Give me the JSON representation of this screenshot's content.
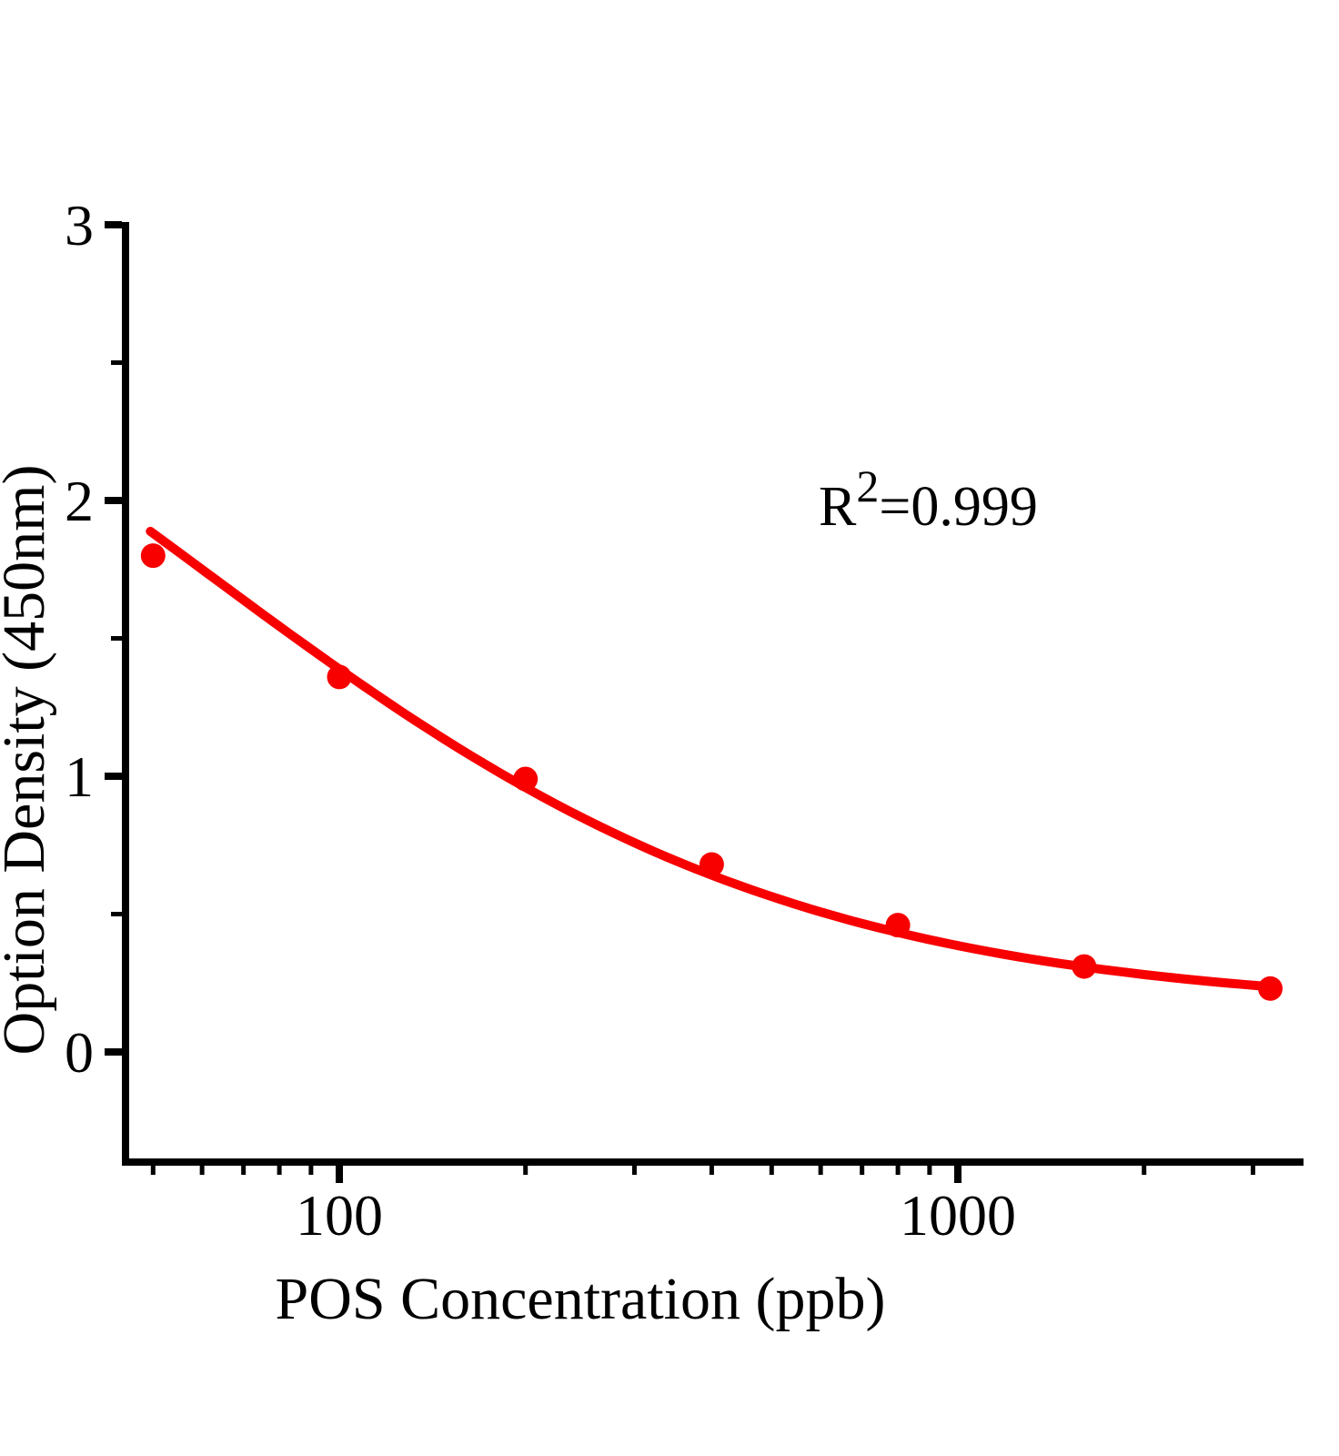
{
  "figure": {
    "background": "#ffffff",
    "axis_color": "#000000",
    "accent_red": "#f80000"
  },
  "chart_data": {
    "type": "scatter",
    "title": "",
    "xlabel": "POS Concentration（ppb）",
    "ylabel": "Option Density（450nm）",
    "annotation": {
      "text": "R²=0.999",
      "base": "R",
      "superscript": "2",
      "rest": "=0.999"
    },
    "grid": false,
    "legend_position": "none",
    "x_axis": {
      "scale": "log",
      "range": [
        45,
        3600
      ],
      "major_ticks": [
        100,
        1000
      ],
      "major_tick_labels": [
        "100",
        "1000"
      ],
      "minor_ticks": [
        50,
        60,
        70,
        80,
        90,
        200,
        300,
        400,
        500,
        600,
        700,
        800,
        900,
        2000,
        3000
      ]
    },
    "y_axis": {
      "scale": "linear",
      "range": [
        -0.4,
        3.0
      ],
      "major_ticks": [
        0,
        1,
        2,
        3
      ],
      "major_tick_labels": [
        "0",
        "1",
        "2",
        "3"
      ],
      "minor_ticks": [
        0.5,
        1.5,
        2.5
      ]
    },
    "series": [
      {
        "name": "",
        "marker": "circle",
        "color": "#f80000",
        "x": [
          50,
          100,
          200,
          400,
          800,
          1600,
          3200
        ],
        "y": [
          1.8,
          1.36,
          0.99,
          0.68,
          0.46,
          0.31,
          0.23
        ]
      }
    ],
    "fit_curve": {
      "model": "4PL",
      "color": "#f80000",
      "A_top": 3.35,
      "B_hill": 0.9,
      "C_ec50": 60,
      "D_bottom": 0.15,
      "x_start": 49.5,
      "x_end": 3200
    }
  }
}
